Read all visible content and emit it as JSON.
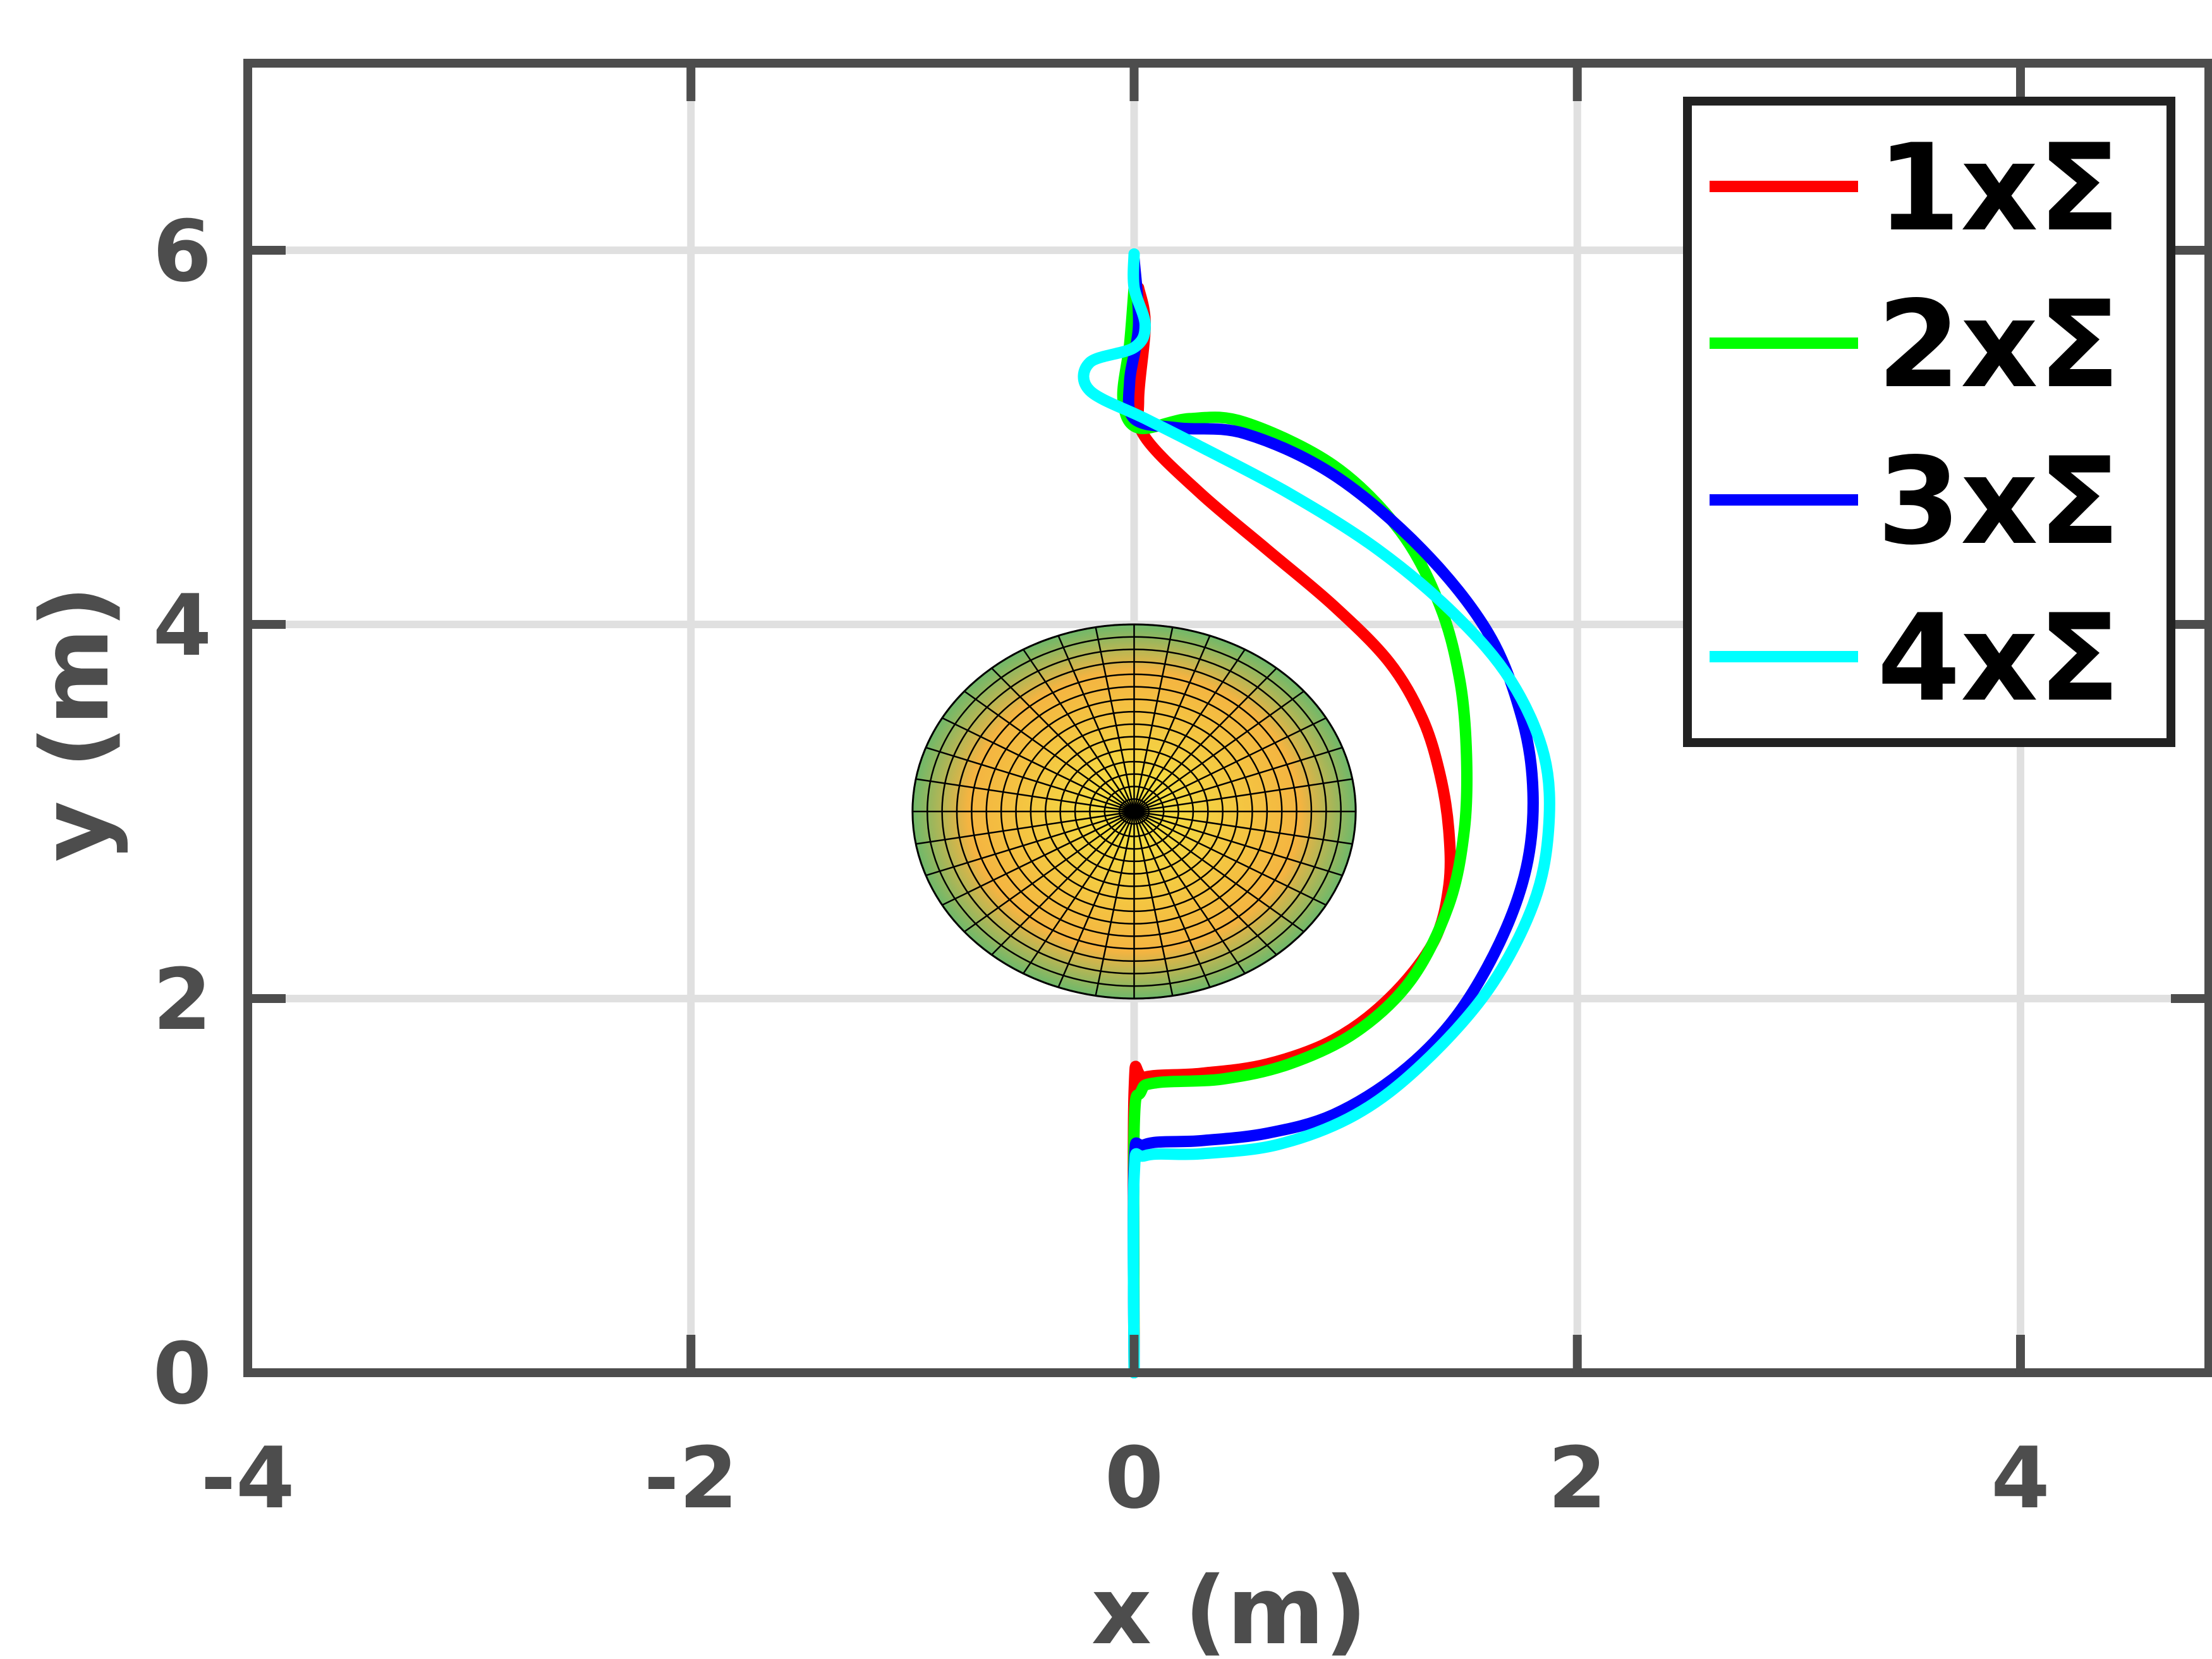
{
  "chart_data": {
    "type": "line",
    "title": "",
    "xlabel": "x (m)",
    "ylabel": "y (m)",
    "xlim": [
      -4,
      4.85
    ],
    "ylim": [
      0,
      7
    ],
    "xticks": [
      -4,
      -2,
      0,
      2,
      4
    ],
    "yticks": [
      0,
      2,
      4,
      6
    ],
    "xtick_labels": [
      "-4",
      "-2",
      "0",
      "2",
      "4"
    ],
    "ytick_labels": [
      "0",
      "2",
      "4",
      "6"
    ],
    "grid": true,
    "legend_position": "top-right",
    "obstacle": {
      "shape": "disk",
      "center": [
        0,
        3
      ],
      "radius": 1.0,
      "colors": [
        "#f5e642",
        "#f4b441",
        "#6fb86a"
      ]
    },
    "series": [
      {
        "name": "1xΣ",
        "color": "#ff0000",
        "points": [
          [
            0,
            0
          ],
          [
            0,
            1.5
          ],
          [
            0.05,
            1.58
          ],
          [
            0.3,
            1.6
          ],
          [
            0.6,
            1.65
          ],
          [
            0.9,
            1.78
          ],
          [
            1.15,
            2.0
          ],
          [
            1.35,
            2.3
          ],
          [
            1.42,
            2.6
          ],
          [
            1.42,
            2.9
          ],
          [
            1.38,
            3.2
          ],
          [
            1.3,
            3.5
          ],
          [
            1.15,
            3.8
          ],
          [
            0.9,
            4.1
          ],
          [
            0.6,
            4.4
          ],
          [
            0.3,
            4.7
          ],
          [
            0.05,
            5.0
          ],
          [
            0.02,
            5.2
          ],
          [
            0.05,
            5.6
          ],
          [
            0.02,
            5.8
          ]
        ]
      },
      {
        "name": "2xΣ",
        "color": "#00ff00",
        "points": [
          [
            0,
            0
          ],
          [
            0,
            1.3
          ],
          [
            0.03,
            1.5
          ],
          [
            0.1,
            1.55
          ],
          [
            0.4,
            1.57
          ],
          [
            0.7,
            1.65
          ],
          [
            1.0,
            1.82
          ],
          [
            1.25,
            2.1
          ],
          [
            1.42,
            2.5
          ],
          [
            1.49,
            2.9
          ],
          [
            1.5,
            3.3
          ],
          [
            1.47,
            3.7
          ],
          [
            1.38,
            4.1
          ],
          [
            1.2,
            4.5
          ],
          [
            0.9,
            4.85
          ],
          [
            0.5,
            5.08
          ],
          [
            0.25,
            5.1
          ],
          [
            0.02,
            5.05
          ],
          [
            -0.05,
            5.2
          ],
          [
            -0.02,
            5.5
          ],
          [
            0.0,
            5.8
          ]
        ]
      },
      {
        "name": "3xΣ",
        "color": "#0000ff",
        "points": [
          [
            0,
            0
          ],
          [
            0,
            1.1
          ],
          [
            0.05,
            1.22
          ],
          [
            0.3,
            1.24
          ],
          [
            0.6,
            1.28
          ],
          [
            0.9,
            1.38
          ],
          [
            1.2,
            1.6
          ],
          [
            1.45,
            1.9
          ],
          [
            1.65,
            2.3
          ],
          [
            1.77,
            2.7
          ],
          [
            1.8,
            3.1
          ],
          [
            1.75,
            3.5
          ],
          [
            1.6,
            3.95
          ],
          [
            1.3,
            4.4
          ],
          [
            0.9,
            4.8
          ],
          [
            0.5,
            5.02
          ],
          [
            0.2,
            5.05
          ],
          [
            0.0,
            5.1
          ],
          [
            -0.02,
            5.3
          ],
          [
            0.02,
            5.6
          ],
          [
            0.0,
            5.95
          ]
        ]
      },
      {
        "name": "4xΣ",
        "color": "#00ffff",
        "points": [
          [
            0,
            0
          ],
          [
            0,
            1.05
          ],
          [
            0.05,
            1.16
          ],
          [
            0.3,
            1.17
          ],
          [
            0.65,
            1.22
          ],
          [
            1.0,
            1.38
          ],
          [
            1.3,
            1.65
          ],
          [
            1.6,
            2.05
          ],
          [
            1.8,
            2.5
          ],
          [
            1.87,
            2.9
          ],
          [
            1.85,
            3.3
          ],
          [
            1.7,
            3.7
          ],
          [
            1.45,
            4.05
          ],
          [
            1.1,
            4.4
          ],
          [
            0.7,
            4.7
          ],
          [
            0.3,
            4.95
          ],
          [
            0.05,
            5.1
          ],
          [
            -0.2,
            5.25
          ],
          [
            -0.2,
            5.4
          ],
          [
            0.0,
            5.48
          ],
          [
            0.05,
            5.6
          ],
          [
            0.0,
            5.8
          ],
          [
            0.0,
            5.98
          ]
        ]
      }
    ]
  }
}
